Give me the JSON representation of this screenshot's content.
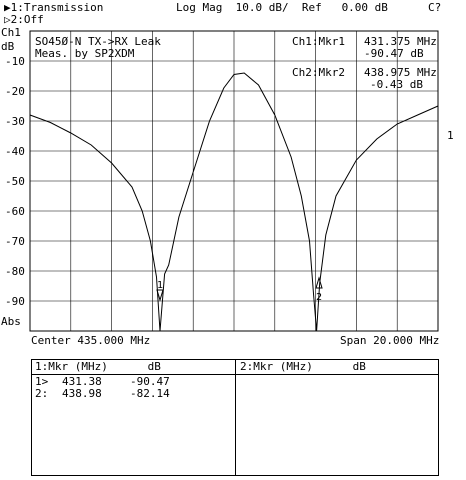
{
  "header": {
    "line1": "▶1:Transmission",
    "line2": "▷2:Off",
    "format": "Log Mag  10.0 dB/  Ref   0.00 dB",
    "status": "C?"
  },
  "channel": {
    "label": "Ch1",
    "unit": "dB"
  },
  "annotation": {
    "line1": "SO45Ø-N TX->RX Leak",
    "line2": "Meas. by SP2XDM"
  },
  "markers": {
    "m1": {
      "label": "Ch1:Mkr1",
      "freq": "431.375 MHz",
      "value": "-90.47 dB"
    },
    "m2": {
      "label": "Ch2:Mkr2",
      "freq": "438.975 MHz",
      "value": "-0.43 dB"
    },
    "flag1": "1",
    "flag2": "2",
    "edge_flag": "1"
  },
  "footer": {
    "center": "Center 435.000 MHz",
    "span": "Span 20.000 MHz",
    "abs": "Abs"
  },
  "table": {
    "left_header": "1:Mkr (MHz)      dB",
    "right_header": "2:Mkr (MHz)      dB",
    "rows": [
      {
        "id": "1>",
        "freq": "431.38",
        "db": "-90.47"
      },
      {
        "id": "2:",
        "freq": "438.98",
        "db": "-82.14"
      }
    ]
  },
  "chart_data": {
    "type": "line",
    "ylim": [
      -100,
      0
    ],
    "xlim": [
      425,
      445
    ],
    "yticks": [
      "-10",
      "-20",
      "-30",
      "-40",
      "-50",
      "-60",
      "-70",
      "-80",
      "-90"
    ],
    "series": [
      {
        "x": [
          425,
          426,
          427,
          428,
          429,
          430,
          430.5,
          430.9,
          431.2,
          431.375,
          431.6,
          431.8,
          432.3,
          433,
          433.8,
          434.5,
          435,
          435.5,
          436.2,
          437,
          437.8,
          438.3,
          438.7,
          438.9,
          439.05,
          439.2,
          439.5,
          440,
          441,
          442,
          443,
          444,
          445
        ],
        "y": [
          -28,
          -30.5,
          -34,
          -38,
          -44,
          -52,
          -60,
          -70,
          -82,
          -100,
          -81,
          -78,
          -62,
          -47,
          -30,
          -19,
          -14.5,
          -14,
          -18,
          -28,
          -42,
          -55,
          -70,
          -88,
          -100,
          -84,
          -68,
          -55,
          -43,
          -36,
          -31,
          -28,
          -25
        ]
      }
    ]
  }
}
